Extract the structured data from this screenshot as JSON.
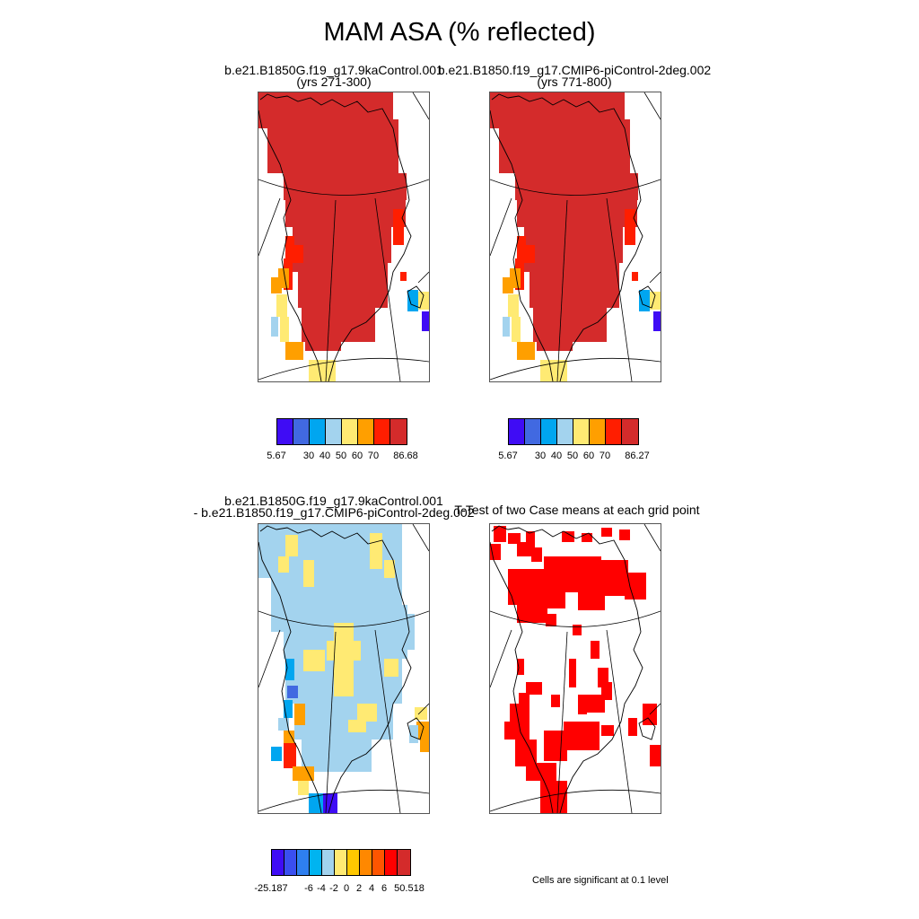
{
  "title": "MAM ASA (% reflected)",
  "panels": [
    {
      "id": "p1",
      "title_line1": "b.e21.B1850G.f19_g17.9kaControl.001",
      "title_line2": "(yrs 271-300)",
      "pattern": "case"
    },
    {
      "id": "p2",
      "title_line1": "b.e21.B1850.f19_g17.CMIP6-piControl-2deg.002",
      "title_line2": "(yrs 771-800)",
      "pattern": "case"
    },
    {
      "id": "p3",
      "title_line1": "b.e21.B1850G.f19_g17.9kaControl.001",
      "title_line2": "- b.e21.B1850.f19_g17.CMIP6-piControl-2deg.002",
      "pattern": "diff"
    },
    {
      "id": "p4",
      "title_line1": "T-Test of two Case means at each grid point",
      "title_line2": "",
      "pattern": "ttest"
    }
  ],
  "colorbars": [
    {
      "id": "cb1",
      "colors": [
        "#3f0cf5",
        "#4169e1",
        "#00a6f0",
        "#a3d3ee",
        "#ffea73",
        "#ff9f00",
        "#ff1e00",
        "#d42b2b"
      ],
      "labels": [
        "5.67",
        "30",
        "40",
        "50",
        "60",
        "70",
        "86.68"
      ]
    },
    {
      "id": "cb2",
      "colors": [
        "#3f0cf5",
        "#4169e1",
        "#00a6f0",
        "#a3d3ee",
        "#ffea73",
        "#ff9f00",
        "#ff1e00",
        "#d42b2b"
      ],
      "labels": [
        "5.67",
        "30",
        "40",
        "50",
        "60",
        "70",
        "86.27"
      ]
    },
    {
      "id": "cb3",
      "colors": [
        "#3f0cf5",
        "#3a4ff0",
        "#2e7ff0",
        "#00b4f0",
        "#a3d3ee",
        "#ffea73",
        "#ffc800",
        "#ff8800",
        "#ff5500",
        "#ff0000",
        "#d42b2b"
      ],
      "labels": [
        "-25.187",
        "-6",
        "-4",
        "-2",
        "0",
        "2",
        "4",
        "6",
        "50.518"
      ]
    }
  ],
  "footnote": "Cells are significant at 0.1 level",
  "palette": {
    "dark_red": "#d42b2b",
    "red": "#ff1e00",
    "orange": "#ff9f00",
    "yellow": "#ffea73",
    "light_blue": "#a3d3ee",
    "blue": "#00a6f0",
    "royal": "#4169e1",
    "violet": "#3f0cf5",
    "sig_red": "#ff0000"
  }
}
